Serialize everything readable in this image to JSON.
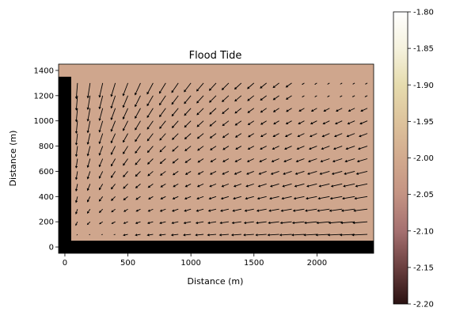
{
  "chart_data": {
    "type": "quiver",
    "title": "Flood Tide",
    "xlabel": "Distance (m)",
    "ylabel": "Distance (m)",
    "xlim": [
      -50,
      2450
    ],
    "ylim": [
      -50,
      1450
    ],
    "xticks": [
      0,
      500,
      1000,
      1500,
      2000
    ],
    "yticks": [
      0,
      200,
      400,
      600,
      800,
      1000,
      1200,
      1400
    ],
    "background_value": -2.0,
    "land_regions": [
      {
        "name": "west-land",
        "x": [
          -50,
          50
        ],
        "y": [
          -50,
          1350
        ]
      },
      {
        "name": "south-land",
        "x": [
          -50,
          2450
        ],
        "y": [
          -50,
          50
        ]
      }
    ],
    "vector_grid": {
      "x_start": 100,
      "x_step": 100,
      "x_count": 24,
      "y_start": 100,
      "y_step": 100,
      "y_count": 13,
      "description_of_flow": "southward along western part, turning westward along southern part; converges toward south-west corner"
    },
    "colorbar": {
      "min": -2.2,
      "max": -1.8,
      "ticks": [
        "-1.80",
        "-1.85",
        "-1.90",
        "-1.95",
        "-2.00",
        "-2.05",
        "-2.10",
        "-2.15",
        "-2.20"
      ],
      "colormap": "pink-like",
      "colors": [
        "#2a1212",
        "#6b4040",
        "#a57070",
        "#c49383",
        "#d2aa8e",
        "#ddc39c",
        "#e6dcae",
        "#f5f2de",
        "#ffffff"
      ]
    },
    "colors": {
      "water": "#cfa68d",
      "land": "#000000",
      "arrow": "#000000"
    }
  }
}
